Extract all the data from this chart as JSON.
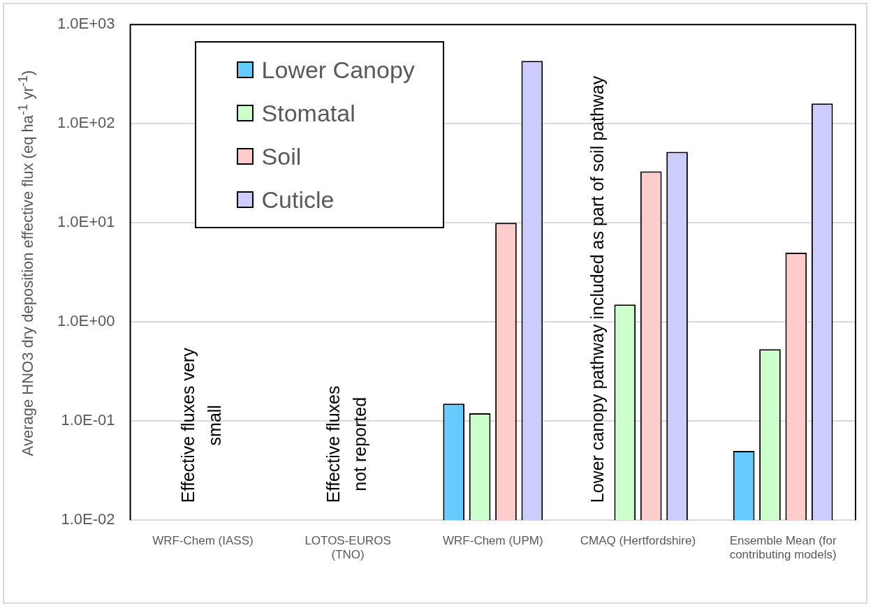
{
  "chart_data": {
    "type": "bar",
    "ylabel": "Average HNO3 dry deposition effective flux (eq ha$^{-1}$ yr$^{-1}$)",
    "categories": [
      "WRF-Chem (IASS)",
      "LOTOS-EUROS (TNO)",
      "WRF-Chem (UPM)",
      "CMAQ (Hertfordshire)",
      "Ensemble Mean (for contributing models)"
    ],
    "series": [
      {
        "name": "Lower Canopy",
        "color": "#66ccff",
        "values": [
          null,
          null,
          0.15,
          null,
          0.05
        ]
      },
      {
        "name": "Stomatal",
        "color": "#ccffcc",
        "values": [
          null,
          null,
          0.12,
          1.5,
          0.53
        ]
      },
      {
        "name": "Soil",
        "color": "#ffcccc",
        "values": [
          null,
          null,
          10,
          33,
          5
        ]
      },
      {
        "name": "Cuticle",
        "color": "#ccccff",
        "values": [
          null,
          null,
          430,
          52,
          160
        ]
      }
    ],
    "log": true,
    "ylim": [
      0.01,
      1000
    ],
    "yticks": [
      {
        "value": 0.01,
        "label": "1.0E-02"
      },
      {
        "value": 0.1,
        "label": "1.0E-01"
      },
      {
        "value": 1,
        "label": "1.0E+00"
      },
      {
        "value": 10,
        "label": "1.0E+01"
      },
      {
        "value": 100,
        "label": "1.0E+02"
      },
      {
        "value": 1000,
        "label": "1.0E+03"
      }
    ],
    "grid": "y",
    "legend": "top left",
    "annotations": [
      "Effective fluxes very\nsmall",
      "Effective fluxes\nnot reported",
      "Lower canopy pathway included as part of soil pathway"
    ]
  }
}
